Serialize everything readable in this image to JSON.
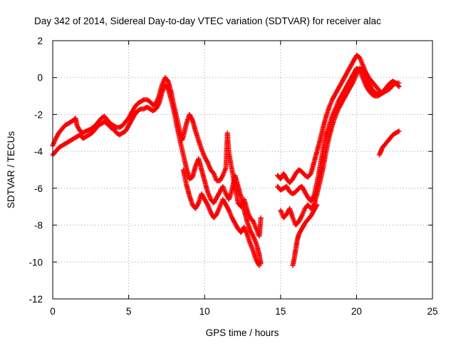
{
  "chart_data": {
    "type": "scatter",
    "title": "Day 342 of 2014, Sidereal Day-to-day VTEC variation (SDTVAR) for receiver alac",
    "xlabel": "GPS time / hours",
    "ylabel": "SDTVAR / TECUs",
    "xlim": [
      0,
      25
    ],
    "ylim": [
      -12,
      2
    ],
    "xticks": [
      0,
      5,
      10,
      15,
      20,
      25
    ],
    "yticks": [
      -12,
      -10,
      -8,
      -6,
      -4,
      -2,
      0,
      2
    ],
    "grid": true,
    "grid_style": "dotted",
    "marker": "+",
    "colors": {
      "series": "#ff0000",
      "grid": "#a0a0a0",
      "axis": "#000000"
    },
    "series": [
      {
        "points": [
          [
            0.0,
            -3.7
          ],
          [
            0.2,
            -3.3
          ],
          [
            0.4,
            -3.0
          ],
          [
            0.6,
            -2.8
          ],
          [
            0.8,
            -2.6
          ],
          [
            1.0,
            -2.5
          ],
          [
            1.2,
            -2.4
          ],
          [
            1.4,
            -2.3
          ],
          [
            1.5,
            -2.2
          ],
          [
            1.6,
            -2.6
          ],
          [
            1.8,
            -2.9
          ],
          [
            2.0,
            -3.0
          ],
          [
            2.2,
            -2.9
          ],
          [
            2.5,
            -2.8
          ],
          [
            2.8,
            -2.6
          ],
          [
            3.0,
            -2.4
          ],
          [
            3.2,
            -2.2
          ],
          [
            3.4,
            -2.1
          ],
          [
            3.6,
            -2.3
          ],
          [
            3.8,
            -2.5
          ],
          [
            4.0,
            -2.6
          ],
          [
            4.2,
            -2.7
          ],
          [
            4.4,
            -2.7
          ],
          [
            4.6,
            -2.6
          ],
          [
            4.8,
            -2.4
          ],
          [
            5.0,
            -2.2
          ],
          [
            5.2,
            -1.9
          ],
          [
            5.4,
            -1.6
          ],
          [
            5.6,
            -1.4
          ],
          [
            5.8,
            -1.3
          ],
          [
            6.0,
            -1.2
          ],
          [
            6.2,
            -1.2
          ],
          [
            6.4,
            -1.3
          ],
          [
            6.6,
            -1.5
          ],
          [
            6.8,
            -1.4
          ],
          [
            7.0,
            -1.0
          ],
          [
            7.2,
            -0.4
          ],
          [
            7.4,
            0.0
          ],
          [
            7.6,
            -0.2
          ],
          [
            7.8,
            -0.8
          ],
          [
            8.0,
            -1.6
          ],
          [
            8.2,
            -2.3
          ],
          [
            8.4,
            -3.0
          ],
          [
            8.5,
            -3.4
          ],
          [
            8.6,
            -3.2
          ],
          [
            8.8,
            -2.5
          ],
          [
            9.0,
            -2.0
          ],
          [
            9.2,
            -2.3
          ],
          [
            9.4,
            -2.9
          ],
          [
            9.6,
            -3.4
          ],
          [
            9.8,
            -3.9
          ],
          [
            10.0,
            -4.3
          ],
          [
            10.2,
            -4.6
          ],
          [
            10.4,
            -5.0
          ],
          [
            10.6,
            -5.2
          ],
          [
            10.8,
            -5.6
          ],
          [
            11.0,
            -5.6
          ],
          [
            11.2,
            -5.3
          ],
          [
            11.4,
            -4.9
          ],
          [
            11.5,
            -3.0
          ],
          [
            11.6,
            -4.1
          ],
          [
            11.8,
            -5.0
          ],
          [
            12.0,
            -5.9
          ],
          [
            12.2,
            -6.8
          ],
          [
            12.4,
            -7.0
          ],
          [
            12.6,
            -6.6
          ],
          [
            12.8,
            -7.2
          ],
          [
            13.0,
            -7.6
          ],
          [
            13.2,
            -7.8
          ],
          [
            13.4,
            -8.2
          ],
          [
            13.6,
            -8.6
          ],
          [
            13.7,
            -7.6
          ]
        ]
      },
      {
        "points": [
          [
            0.0,
            -4.2
          ],
          [
            0.2,
            -4.0
          ],
          [
            0.4,
            -3.8
          ],
          [
            0.6,
            -3.7
          ],
          [
            0.8,
            -3.6
          ],
          [
            1.0,
            -3.5
          ],
          [
            1.2,
            -3.4
          ],
          [
            1.4,
            -3.3
          ],
          [
            1.6,
            -3.2
          ],
          [
            1.8,
            -3.1
          ],
          [
            2.0,
            -3.3
          ],
          [
            2.2,
            -3.2
          ],
          [
            2.4,
            -3.1
          ],
          [
            2.6,
            -3.0
          ],
          [
            2.8,
            -2.8
          ],
          [
            3.0,
            -2.6
          ],
          [
            3.2,
            -2.5
          ],
          [
            3.4,
            -2.4
          ],
          [
            3.6,
            -2.5
          ],
          [
            3.8,
            -2.7
          ],
          [
            4.0,
            -2.8
          ],
          [
            4.2,
            -3.0
          ],
          [
            4.4,
            -3.1
          ],
          [
            4.6,
            -3.0
          ],
          [
            4.8,
            -2.9
          ],
          [
            5.0,
            -2.6
          ],
          [
            5.2,
            -2.3
          ],
          [
            5.4,
            -2.0
          ],
          [
            5.6,
            -1.8
          ],
          [
            5.8,
            -1.7
          ],
          [
            6.0,
            -1.7
          ],
          [
            6.2,
            -1.6
          ],
          [
            6.4,
            -1.7
          ],
          [
            6.6,
            -1.8
          ],
          [
            6.8,
            -1.7
          ],
          [
            7.0,
            -1.4
          ],
          [
            7.2,
            -0.8
          ],
          [
            7.4,
            -0.4
          ],
          [
            7.6,
            -0.6
          ],
          [
            7.8,
            -1.2
          ],
          [
            8.0,
            -1.9
          ],
          [
            8.2,
            -2.7
          ],
          [
            8.4,
            -3.5
          ],
          [
            8.6,
            -4.2
          ],
          [
            8.8,
            -4.9
          ],
          [
            9.0,
            -5.5
          ],
          [
            9.2,
            -5.4
          ],
          [
            9.4,
            -4.8
          ],
          [
            9.6,
            -4.4
          ],
          [
            9.8,
            -5.0
          ],
          [
            10.0,
            -5.6
          ],
          [
            10.2,
            -6.2
          ],
          [
            10.4,
            -6.6
          ],
          [
            10.6,
            -6.8
          ],
          [
            10.8,
            -6.5
          ],
          [
            11.0,
            -6.2
          ],
          [
            11.2,
            -5.9
          ],
          [
            11.4,
            -6.3
          ],
          [
            11.6,
            -6.6
          ],
          [
            11.8,
            -6.1
          ],
          [
            12.0,
            -5.3
          ],
          [
            12.2,
            -5.9
          ],
          [
            12.4,
            -6.5
          ],
          [
            12.6,
            -7.2
          ],
          [
            12.8,
            -7.8
          ],
          [
            13.0,
            -8.3
          ],
          [
            13.2,
            -8.6
          ],
          [
            13.4,
            -9.0
          ],
          [
            13.6,
            -9.6
          ],
          [
            13.7,
            -10.1
          ]
        ]
      },
      {
        "points": [
          [
            8.6,
            -5.0
          ],
          [
            8.8,
            -5.8
          ],
          [
            9.0,
            -6.4
          ],
          [
            9.2,
            -6.9
          ],
          [
            9.4,
            -7.1
          ],
          [
            9.6,
            -6.8
          ],
          [
            9.8,
            -6.3
          ],
          [
            10.0,
            -6.6
          ],
          [
            10.2,
            -6.9
          ],
          [
            10.4,
            -7.3
          ],
          [
            10.6,
            -7.6
          ],
          [
            10.8,
            -7.4
          ],
          [
            11.0,
            -7.0
          ],
          [
            11.2,
            -6.6
          ],
          [
            11.4,
            -6.9
          ],
          [
            11.6,
            -7.2
          ],
          [
            11.8,
            -7.6
          ],
          [
            12.0,
            -7.9
          ],
          [
            12.2,
            -8.2
          ],
          [
            12.4,
            -8.4
          ],
          [
            12.6,
            -8.1
          ],
          [
            12.8,
            -8.5
          ],
          [
            13.0,
            -9.0
          ],
          [
            13.2,
            -9.4
          ],
          [
            13.4,
            -9.9
          ],
          [
            13.6,
            -10.2
          ]
        ]
      },
      {
        "points": [
          [
            14.8,
            -5.3
          ],
          [
            15.0,
            -5.5
          ],
          [
            15.2,
            -5.2
          ],
          [
            15.4,
            -5.5
          ],
          [
            15.6,
            -5.7
          ],
          [
            15.8,
            -5.5
          ],
          [
            16.0,
            -5.2
          ],
          [
            16.2,
            -5.0
          ],
          [
            16.4,
            -5.1
          ],
          [
            16.6,
            -5.3
          ],
          [
            16.8,
            -5.4
          ],
          [
            17.0,
            -5.2
          ],
          [
            17.2,
            -4.6
          ],
          [
            17.4,
            -4.0
          ],
          [
            17.6,
            -3.4
          ],
          [
            17.8,
            -2.7
          ],
          [
            18.0,
            -2.1
          ],
          [
            18.2,
            -1.6
          ],
          [
            18.4,
            -1.2
          ],
          [
            18.6,
            -0.9
          ],
          [
            18.8,
            -0.6
          ],
          [
            19.0,
            -0.3
          ],
          [
            19.2,
            0.0
          ],
          [
            19.4,
            0.3
          ],
          [
            19.6,
            0.6
          ],
          [
            19.8,
            0.9
          ],
          [
            20.0,
            1.2
          ],
          [
            20.2,
            1.1
          ],
          [
            20.4,
            0.7
          ],
          [
            20.6,
            0.3
          ],
          [
            20.8,
            0.0
          ],
          [
            21.0,
            -0.2
          ],
          [
            21.2,
            -0.4
          ],
          [
            21.4,
            -0.6
          ],
          [
            21.6,
            -0.8
          ],
          [
            21.8,
            -0.8
          ],
          [
            22.0,
            -0.7
          ],
          [
            22.2,
            -0.6
          ],
          [
            22.4,
            -0.4
          ],
          [
            22.6,
            -0.3
          ],
          [
            22.8,
            -0.3
          ]
        ]
      },
      {
        "points": [
          [
            14.8,
            -5.9
          ],
          [
            15.0,
            -6.1
          ],
          [
            15.2,
            -6.0
          ],
          [
            15.4,
            -5.9
          ],
          [
            15.6,
            -6.2
          ],
          [
            15.8,
            -6.3
          ],
          [
            16.0,
            -6.2
          ],
          [
            16.2,
            -6.0
          ],
          [
            16.4,
            -5.9
          ],
          [
            16.6,
            -6.2
          ],
          [
            16.8,
            -6.5
          ],
          [
            17.0,
            -6.7
          ],
          [
            17.2,
            -6.4
          ],
          [
            17.4,
            -5.7
          ],
          [
            17.6,
            -4.8
          ],
          [
            17.8,
            -3.9
          ],
          [
            18.0,
            -3.1
          ],
          [
            18.2,
            -2.6
          ],
          [
            18.4,
            -2.1
          ],
          [
            18.6,
            -1.7
          ],
          [
            18.8,
            -1.3
          ],
          [
            19.0,
            -1.0
          ],
          [
            19.2,
            -0.7
          ],
          [
            19.4,
            -0.4
          ],
          [
            19.6,
            -0.1
          ],
          [
            19.8,
            0.2
          ],
          [
            20.0,
            0.5
          ],
          [
            20.2,
            0.4
          ],
          [
            20.4,
            0.0
          ],
          [
            20.6,
            -0.4
          ],
          [
            20.8,
            -0.7
          ],
          [
            21.0,
            -0.9
          ],
          [
            21.2,
            -1.0
          ],
          [
            21.4,
            -1.0
          ],
          [
            21.6,
            -0.9
          ],
          [
            21.8,
            -0.7
          ],
          [
            22.0,
            -0.5
          ],
          [
            22.2,
            -0.3
          ],
          [
            22.4,
            -0.2
          ],
          [
            22.6,
            -0.3
          ],
          [
            22.8,
            -0.5
          ]
        ]
      },
      {
        "points": [
          [
            15.0,
            -7.2
          ],
          [
            15.2,
            -7.6
          ],
          [
            15.4,
            -7.4
          ],
          [
            15.6,
            -7.1
          ],
          [
            15.8,
            -7.6
          ],
          [
            16.0,
            -8.0
          ],
          [
            16.2,
            -7.8
          ],
          [
            16.4,
            -7.5
          ],
          [
            16.6,
            -7.1
          ],
          [
            16.8,
            -6.9
          ],
          [
            17.0,
            -7.1
          ],
          [
            17.2,
            -6.9
          ],
          [
            17.4,
            -6.3
          ],
          [
            17.6,
            -5.6
          ],
          [
            17.8,
            -4.9
          ],
          [
            18.0,
            -4.0
          ],
          [
            18.2,
            -3.2
          ],
          [
            18.4,
            -2.6
          ],
          [
            18.6,
            -2.1
          ],
          [
            18.8,
            -1.7
          ],
          [
            19.0,
            -1.4
          ],
          [
            19.2,
            -1.1
          ],
          [
            19.4,
            -0.8
          ],
          [
            19.6,
            -0.5
          ],
          [
            19.8,
            -0.2
          ],
          [
            20.0,
            0.2
          ],
          [
            20.2,
            0.5
          ],
          [
            20.4,
            0.4
          ],
          [
            20.6,
            0.1
          ],
          [
            20.8,
            -0.3
          ],
          [
            21.0,
            -0.6
          ],
          [
            21.2,
            -0.8
          ],
          [
            21.4,
            -0.9
          ],
          [
            21.6,
            -0.9
          ],
          [
            21.8,
            -0.8
          ]
        ]
      },
      {
        "points": [
          [
            15.8,
            -10.2
          ],
          [
            15.9,
            -9.8
          ],
          [
            16.0,
            -9.3
          ],
          [
            16.1,
            -8.8
          ],
          [
            16.2,
            -8.5
          ],
          [
            16.4,
            -8.2
          ],
          [
            16.6,
            -7.9
          ],
          [
            16.8,
            -7.7
          ],
          [
            17.0,
            -7.5
          ],
          [
            17.2,
            -7.2
          ],
          [
            17.4,
            -6.9
          ]
        ]
      },
      {
        "points": [
          [
            21.5,
            -4.2
          ],
          [
            21.6,
            -4.0
          ],
          [
            21.7,
            -3.8
          ],
          [
            21.8,
            -3.7
          ],
          [
            22.0,
            -3.5
          ],
          [
            22.2,
            -3.3
          ],
          [
            22.4,
            -3.1
          ],
          [
            22.6,
            -3.0
          ],
          [
            22.8,
            -2.9
          ]
        ]
      }
    ]
  }
}
